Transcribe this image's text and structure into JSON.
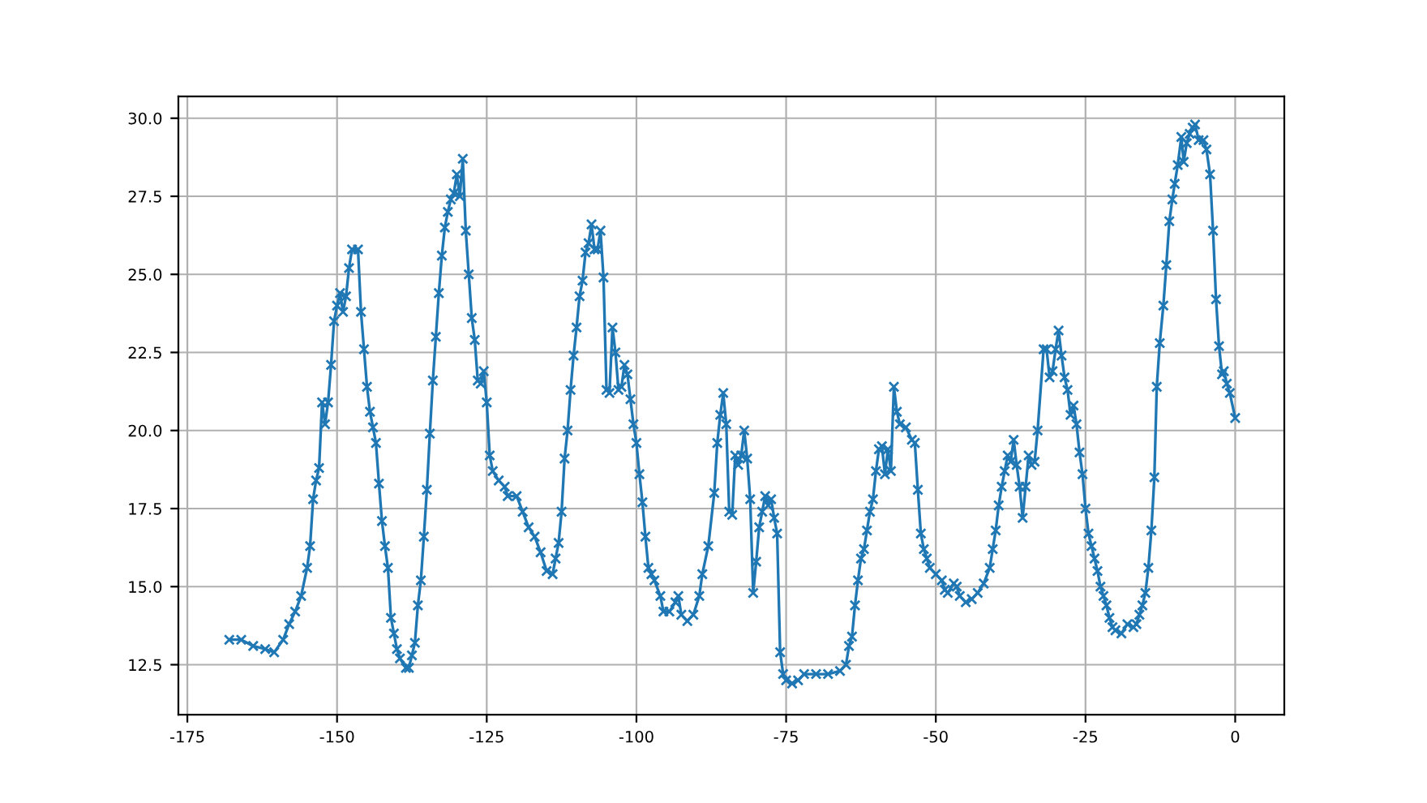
{
  "chart_data": {
    "type": "line",
    "marker": "cross",
    "grid": true,
    "line_style": "solid",
    "xlim": [
      -176.5,
      8.2
    ],
    "ylim": [
      10.9,
      30.7
    ],
    "xticks": [
      -175,
      -150,
      -125,
      -100,
      -75,
      -50,
      -25,
      0
    ],
    "yticks": [
      12.5,
      {
        "value": 15,
        "label": "15.0"
      },
      17.5,
      {
        "value": 20,
        "label": "20.0"
      },
      22.5,
      {
        "value": 25,
        "label": "25.0"
      },
      27.5,
      {
        "value": 30,
        "label": "30.0"
      }
    ],
    "series": [
      {
        "color": "#1f77b4",
        "x": [
          -168,
          -166,
          -164,
          -162,
          -160.5,
          -159,
          -158,
          -157,
          -156,
          -155,
          -154.5,
          -154,
          -153.5,
          -153,
          -152.5,
          -152,
          -151.5,
          -151,
          -150.5,
          -150,
          -149.5,
          -149,
          -148.5,
          -148,
          -147.5,
          -146.5,
          -146,
          -145.5,
          -145,
          -144.5,
          -144,
          -143.5,
          -143,
          -142.5,
          -142,
          -141.5,
          -141,
          -140.5,
          -140,
          -139.5,
          -138.5,
          -138,
          -137.5,
          -137,
          -136.5,
          -136,
          -135.5,
          -135,
          -134.5,
          -134,
          -133.5,
          -133,
          -132.5,
          -132,
          -131.5,
          -131,
          -130.5,
          -130,
          -129.5,
          -129,
          -128.5,
          -128,
          -127.5,
          -127,
          -126.5,
          -126,
          -125.5,
          -125,
          -124.5,
          -124,
          -123,
          -122,
          -121.5,
          -120,
          -119,
          -118,
          -117,
          -116,
          -115,
          -114,
          -113.5,
          -113,
          -112.5,
          -112,
          -111.5,
          -111,
          -110.5,
          -110,
          -109.5,
          -109,
          -108.5,
          -108,
          -107.5,
          -107,
          -106.5,
          -106,
          -105.5,
          -105,
          -104.5,
          -104,
          -103.5,
          -103,
          -102.5,
          -102,
          -101.5,
          -101,
          -100.5,
          -100,
          -99.5,
          -99,
          -98.5,
          -98,
          -97.5,
          -97,
          -96,
          -95.5,
          -94.5,
          -93.5,
          -93,
          -92.5,
          -91.5,
          -90.5,
          -89.5,
          -89,
          -88,
          -87,
          -86.5,
          -86,
          -85.5,
          -85,
          -84.5,
          -84,
          -83.5,
          -83,
          -82.5,
          -82,
          -81.5,
          -81,
          -80.5,
          -80,
          -79.5,
          -79,
          -78.5,
          -78,
          -77.5,
          -77,
          -76.5,
          -76,
          -75.5,
          -75,
          -74,
          -73,
          -72,
          -70,
          -68,
          -66,
          -65,
          -64.5,
          -64,
          -63.5,
          -63,
          -62.5,
          -62,
          -61.5,
          -61,
          -60.5,
          -60,
          -59.5,
          -59,
          -58.5,
          -58,
          -57.5,
          -57,
          -56.5,
          -56,
          -55,
          -54,
          -53.5,
          -53,
          -52.5,
          -52,
          -51.5,
          -51,
          -50,
          -49,
          -48.5,
          -48,
          -47,
          -46.5,
          -46,
          -45,
          -44,
          -43,
          -42,
          -41,
          -40.5,
          -40,
          -39.5,
          -39,
          -38.5,
          -38,
          -37.5,
          -37,
          -36.5,
          -36,
          -35.5,
          -35,
          -34.5,
          -34,
          -33.5,
          -33,
          -32,
          -31.5,
          -31,
          -30.5,
          -30,
          -29.5,
          -29,
          -28.5,
          -28,
          -27.5,
          -27,
          -26.5,
          -26,
          -25.5,
          -25,
          -24.5,
          -24,
          -23.5,
          -23,
          -22.5,
          -22,
          -21.5,
          -21,
          -20.5,
          -20,
          -19,
          -18,
          -17,
          -16.5,
          -16,
          -15.5,
          -15,
          -14.5,
          -14,
          -13.5,
          -13.1,
          -12.6,
          -12,
          -11.5,
          -11,
          -10.5,
          -10.1,
          -9.6,
          -9,
          -8.6,
          -8.1,
          -7.6,
          -7.1,
          -6.7,
          -6.1,
          -5.3,
          -4.8,
          -4.2,
          -3.7,
          -3.2,
          -2.7,
          -2.2,
          -1.9,
          -1.4,
          -0.9,
          0
        ],
        "values": [
          13.3,
          13.3,
          13.1,
          13.0,
          12.9,
          13.3,
          13.8,
          14.2,
          14.7,
          15.6,
          16.3,
          17.8,
          18.4,
          18.8,
          20.9,
          20.2,
          20.9,
          22.1,
          23.5,
          24.0,
          24.4,
          23.8,
          24.3,
          25.2,
          25.8,
          25.8,
          23.8,
          22.6,
          21.4,
          20.6,
          20.1,
          19.6,
          18.3,
          17.1,
          16.3,
          15.6,
          14.0,
          13.5,
          13.0,
          12.7,
          12.4,
          12.4,
          12.8,
          13.2,
          14.4,
          15.2,
          16.6,
          18.1,
          19.9,
          21.6,
          23.0,
          24.4,
          25.6,
          26.5,
          27.0,
          27.4,
          27.6,
          28.2,
          27.5,
          28.7,
          26.4,
          25.0,
          23.6,
          22.9,
          21.6,
          21.5,
          21.9,
          20.9,
          19.2,
          18.7,
          18.4,
          18.2,
          17.9,
          17.9,
          17.4,
          16.9,
          16.6,
          16.1,
          15.5,
          15.4,
          15.9,
          16.4,
          17.4,
          19.1,
          20.0,
          21.3,
          22.4,
          23.3,
          24.3,
          24.8,
          25.7,
          26.0,
          26.6,
          25.8,
          25.8,
          26.4,
          24.9,
          21.3,
          21.2,
          23.3,
          22.5,
          21.3,
          21.4,
          22.1,
          21.8,
          21.0,
          20.2,
          19.6,
          18.6,
          17.7,
          16.6,
          15.6,
          15.4,
          15.2,
          14.7,
          14.2,
          14.2,
          14.5,
          14.7,
          14.1,
          13.9,
          14.1,
          14.7,
          15.4,
          16.3,
          18.0,
          19.6,
          20.5,
          21.2,
          20.2,
          17.4,
          17.3,
          19.2,
          18.9,
          19.2,
          20.0,
          19.1,
          17.8,
          14.8,
          15.8,
          16.9,
          17.4,
          17.9,
          17.6,
          17.8,
          17.2,
          16.7,
          12.9,
          12.2,
          12.0,
          11.9,
          12.0,
          12.2,
          12.2,
          12.2,
          12.3,
          12.5,
          13.1,
          13.4,
          14.4,
          15.2,
          15.9,
          16.2,
          16.8,
          17.4,
          17.8,
          18.7,
          19.4,
          19.5,
          18.6,
          19.4,
          18.7,
          21.4,
          20.6,
          20.2,
          20.1,
          19.7,
          19.6,
          18.1,
          16.7,
          16.2,
          15.9,
          15.6,
          15.4,
          15.2,
          14.9,
          14.8,
          15.1,
          15.0,
          14.7,
          14.5,
          14.6,
          14.8,
          15.1,
          15.6,
          16.2,
          16.8,
          17.6,
          18.2,
          18.7,
          19.2,
          19.0,
          19.7,
          18.9,
          18.2,
          17.2,
          18.2,
          19.2,
          18.9,
          19.0,
          20.0,
          22.6,
          22.6,
          21.7,
          21.9,
          22.6,
          23.2,
          22.4,
          21.7,
          21.3,
          20.5,
          20.8,
          20.2,
          19.3,
          18.6,
          17.5,
          16.7,
          16.3,
          15.9,
          15.5,
          15.0,
          14.7,
          14.4,
          14.0,
          13.7,
          13.6,
          13.5,
          13.8,
          13.7,
          13.8,
          14.1,
          14.4,
          14.8,
          15.6,
          16.8,
          18.5,
          21.4,
          22.8,
          24.0,
          25.3,
          26.7,
          27.4,
          27.9,
          28.5,
          29.4,
          28.6,
          29.2,
          29.5,
          29.7,
          29.8,
          29.3,
          29.3,
          29.0,
          28.2,
          26.4,
          24.2,
          22.7,
          21.8,
          21.9,
          21.5,
          21.2,
          20.4
        ]
      }
    ]
  }
}
